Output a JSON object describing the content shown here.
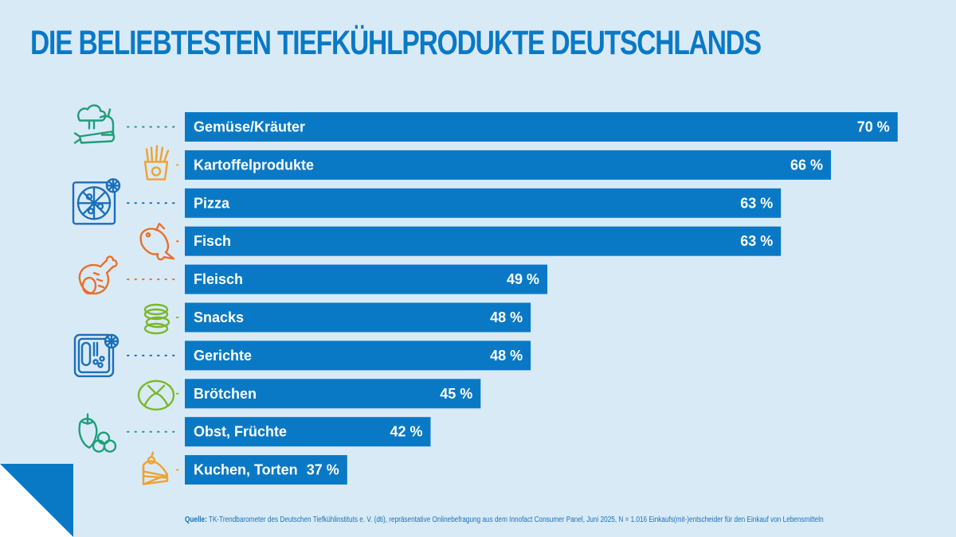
{
  "title": "DIE BELIEBTESTEN TIEFKÜHLPRODUKTE DEUTSCHLANDS",
  "colors": {
    "background": "#d9eaf7",
    "bar": "#0a79c5",
    "title": "#0a79c5",
    "icon_green": "#1f9e78",
    "icon_orange": "#f0a22e",
    "icon_red_orange": "#e8702a",
    "icon_blue": "#1a6fb8",
    "icon_lime": "#7ab829"
  },
  "chart_data": {
    "type": "bar",
    "orientation": "horizontal",
    "title": "DIE BELIEBTESTEN TIEFKÜHLPRODUKTE DEUTSCHLANDS",
    "xlabel": "",
    "ylabel": "",
    "unit": "%",
    "grid": false,
    "legend": "none",
    "categories": [
      "Gemüse/Kräuter",
      "Kartoffelprodukte",
      "Pizza",
      "Fisch",
      "Fleisch",
      "Snacks",
      "Gerichte",
      "Brötchen",
      "Obst, Früchte",
      "Kuchen, Torten"
    ],
    "values": [
      70,
      66,
      63,
      63,
      49,
      48,
      48,
      45,
      42,
      37
    ],
    "value_labels": [
      "70 %",
      "66 %",
      "63 %",
      "63 %",
      "49 %",
      "48 %",
      "48 %",
      "45 %",
      "42 %",
      "37 %"
    ],
    "icons": [
      "vegetables-icon",
      "french-fries-icon",
      "frozen-pizza-icon",
      "fish-icon",
      "meat-icon",
      "snacks-icon",
      "frozen-meal-icon",
      "bread-roll-icon",
      "fruit-icon",
      "cake-icon"
    ],
    "icon_colors": [
      "#1f9e78",
      "#f0a22e",
      "#1a6fb8",
      "#e8702a",
      "#e8702a",
      "#7ab829",
      "#1a6fb8",
      "#7ab829",
      "#1f9e78",
      "#f0a22e"
    ]
  },
  "source": {
    "label": "Quelle:",
    "text": " TK-Trendbarometer des Deutschen Tiefkühlinstituts e. V. (dti), repräsentative Onlinebefragung aus dem Innofact Consumer Panel, Juni 2025, N = 1.016 Einkaufs(mit-)entscheider für den Einkauf von Lebensmitteln"
  }
}
